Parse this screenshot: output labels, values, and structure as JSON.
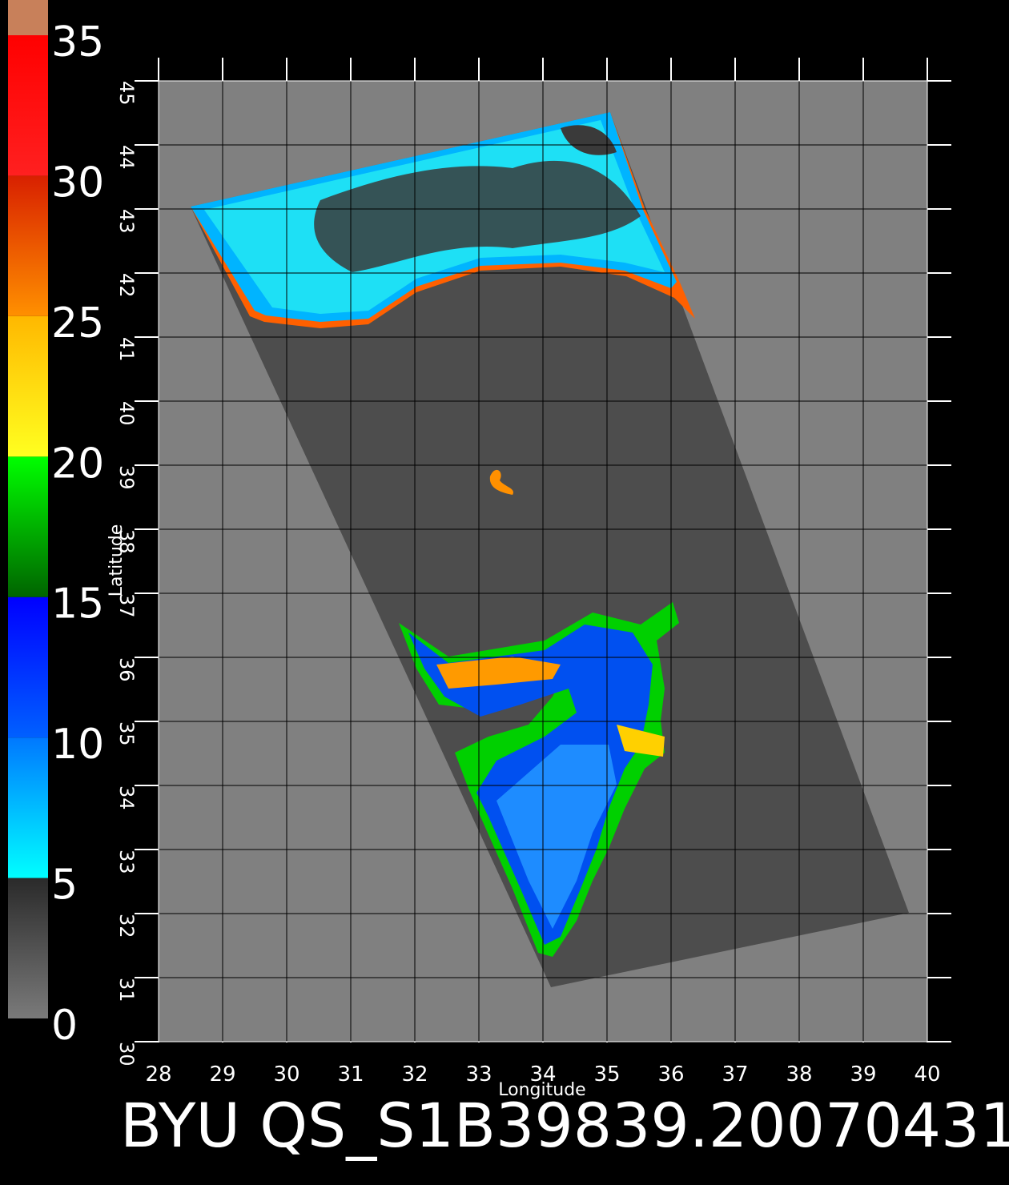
{
  "title": "BYU QS_S1B39839.20070431",
  "colorbar": {
    "ticks": [
      0,
      5,
      10,
      15,
      20,
      25,
      30,
      35
    ],
    "colors": [
      [
        "#7a7a7a",
        "#2a2a2a"
      ],
      [
        "#00ffff",
        "#0078ff"
      ],
      [
        "#0060ff",
        "#0000ff"
      ],
      [
        "#006400",
        "#00ff00"
      ],
      [
        "#ffff20",
        "#ffb800"
      ],
      [
        "#ff9000",
        "#d82000"
      ],
      [
        "#ff2020",
        "#ff0000"
      ]
    ]
  },
  "map": {
    "xlabel": "Longitude",
    "ylabel": "Latitude",
    "xlim": [
      28,
      40
    ],
    "ylim": [
      30,
      45
    ],
    "xticks": [
      28,
      29,
      30,
      31,
      32,
      33,
      34,
      35,
      36,
      37,
      38,
      39,
      40
    ],
    "yticks": [
      30,
      31,
      32,
      33,
      34,
      35,
      36,
      37,
      38,
      39,
      40,
      41,
      42,
      43,
      44,
      45
    ]
  }
}
